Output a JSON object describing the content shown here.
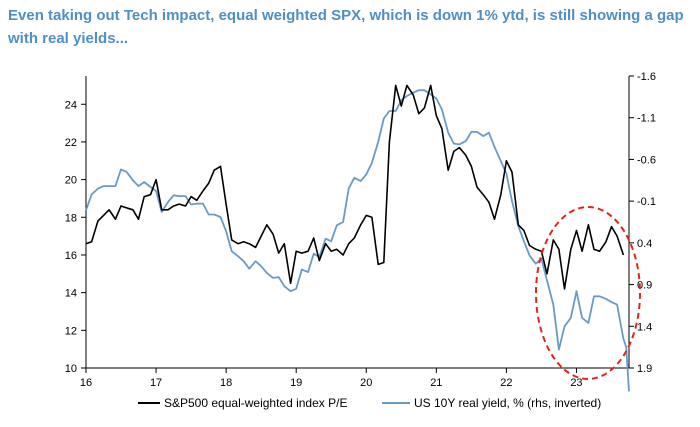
{
  "title": "Even taking out Tech impact, equal weighted SPX, which is down 1% ytd, is still showing a gap with real yields...",
  "chart_data": {
    "type": "line",
    "x_range": [
      16,
      23.75
    ],
    "x_ticks": [
      "16",
      "17",
      "18",
      "19",
      "20",
      "21",
      "22",
      "23"
    ],
    "y_left": {
      "ylim": [
        10,
        25.5
      ],
      "ticks": [
        "10",
        "12",
        "14",
        "16",
        "18",
        "20",
        "22",
        "24"
      ]
    },
    "y_right": {
      "ylim": [
        -1.6,
        1.9
      ],
      "inverted": true,
      "ticks": [
        "-1.6",
        "-1.1",
        "-0.6",
        "-0.1",
        "0.4",
        "0.9",
        "1.4",
        "1.9"
      ]
    },
    "series": [
      {
        "name": "S&P500 equal-weighted index P/E",
        "axis": "left",
        "color": "#000000",
        "x": [
          16.0,
          16.08,
          16.17,
          16.25,
          16.33,
          16.42,
          16.5,
          16.58,
          16.67,
          16.75,
          16.83,
          16.92,
          17.0,
          17.08,
          17.17,
          17.25,
          17.33,
          17.42,
          17.5,
          17.58,
          17.67,
          17.75,
          17.83,
          17.92,
          18.0,
          18.08,
          18.17,
          18.25,
          18.33,
          18.42,
          18.5,
          18.58,
          18.67,
          18.75,
          18.83,
          18.92,
          19.0,
          19.08,
          19.17,
          19.25,
          19.33,
          19.42,
          19.5,
          19.58,
          19.67,
          19.75,
          19.83,
          19.92,
          20.0,
          20.08,
          20.17,
          20.25,
          20.33,
          20.42,
          20.5,
          20.58,
          20.67,
          20.75,
          20.83,
          20.92,
          21.0,
          21.08,
          21.17,
          21.25,
          21.33,
          21.42,
          21.5,
          21.58,
          21.67,
          21.75,
          21.83,
          21.92,
          22.0,
          22.08,
          22.17,
          22.25,
          22.33,
          22.42,
          22.5,
          22.58,
          22.67,
          22.75,
          22.83,
          22.92,
          23.0,
          23.08,
          23.17,
          23.25,
          23.33,
          23.42,
          23.5,
          23.58,
          23.67
        ],
        "values": [
          16.6,
          16.7,
          17.8,
          18.1,
          18.4,
          17.9,
          18.6,
          18.5,
          18.4,
          17.9,
          19.1,
          19.2,
          20.0,
          18.4,
          18.4,
          18.6,
          18.7,
          18.6,
          19.1,
          18.9,
          19.4,
          19.8,
          20.5,
          20.7,
          18.7,
          16.8,
          16.6,
          16.7,
          16.6,
          16.4,
          17.0,
          17.6,
          17.1,
          16.1,
          16.6,
          14.5,
          16.2,
          16.1,
          16.2,
          16.9,
          15.7,
          16.6,
          16.2,
          16.3,
          16.0,
          16.6,
          16.9,
          17.6,
          18.1,
          18.0,
          15.5,
          15.6,
          22.0,
          25.0,
          23.9,
          25.0,
          24.5,
          23.5,
          23.8,
          25.0,
          23.4,
          22.7,
          20.5,
          21.5,
          21.7,
          21.3,
          20.7,
          19.6,
          19.2,
          18.8,
          17.9,
          19.2,
          21.0,
          20.4,
          17.6,
          17.3,
          16.5,
          16.3,
          16.2,
          15.0,
          16.8,
          16.3,
          14.2,
          16.3,
          17.3,
          16.2,
          17.6,
          16.3,
          16.2,
          16.7,
          17.5,
          17.0,
          16.0
        ]
      },
      {
        "name": "US 10Y real yield, % (rhs, inverted)",
        "axis": "right",
        "color": "#6a9ac4",
        "x": [
          16.0,
          16.08,
          16.17,
          16.25,
          16.33,
          16.42,
          16.5,
          16.58,
          16.67,
          16.75,
          16.83,
          16.92,
          17.0,
          17.08,
          17.17,
          17.25,
          17.33,
          17.42,
          17.5,
          17.58,
          17.67,
          17.75,
          17.83,
          17.92,
          18.0,
          18.08,
          18.17,
          18.25,
          18.33,
          18.42,
          18.5,
          18.58,
          18.67,
          18.75,
          18.83,
          18.92,
          19.0,
          19.08,
          19.17,
          19.25,
          19.33,
          19.42,
          19.5,
          19.58,
          19.67,
          19.75,
          19.83,
          19.92,
          20.0,
          20.08,
          20.17,
          20.25,
          20.33,
          20.42,
          20.5,
          20.58,
          20.67,
          20.75,
          20.83,
          20.92,
          21.0,
          21.08,
          21.17,
          21.25,
          21.33,
          21.42,
          21.5,
          21.58,
          21.67,
          21.75,
          21.83,
          21.92,
          22.0,
          22.08,
          22.17,
          22.25,
          22.33,
          22.42,
          22.5,
          22.58,
          22.67,
          22.75,
          22.83,
          22.92,
          23.0,
          23.08,
          23.17,
          23.25,
          23.33,
          23.42,
          23.5,
          23.58,
          23.67,
          23.71,
          23.75
        ],
        "values": [
          0.01,
          -0.18,
          -0.25,
          -0.28,
          -0.28,
          -0.28,
          -0.48,
          -0.45,
          -0.35,
          -0.28,
          -0.33,
          -0.27,
          -0.22,
          0.03,
          -0.09,
          -0.17,
          -0.16,
          -0.16,
          -0.06,
          -0.07,
          -0.07,
          0.06,
          0.06,
          0.09,
          0.26,
          0.5,
          0.56,
          0.62,
          0.71,
          0.62,
          0.68,
          0.76,
          0.82,
          0.81,
          0.92,
          0.98,
          0.95,
          0.72,
          0.75,
          0.53,
          0.57,
          0.35,
          0.38,
          0.19,
          0.15,
          -0.25,
          -0.38,
          -0.34,
          -0.42,
          -0.56,
          -0.81,
          -1.09,
          -1.18,
          -1.18,
          -1.31,
          -1.36,
          -1.4,
          -1.43,
          -1.43,
          -1.38,
          -1.33,
          -1.2,
          -0.92,
          -0.79,
          -0.78,
          -0.82,
          -0.93,
          -0.93,
          -0.88,
          -0.92,
          -0.75,
          -0.58,
          -0.43,
          -0.1,
          0.2,
          0.38,
          0.55,
          0.65,
          0.59,
          0.85,
          1.14,
          1.68,
          1.4,
          1.3,
          0.98,
          1.3,
          1.36,
          1.04,
          1.04,
          1.07,
          1.11,
          1.14,
          1.55,
          1.65,
          2.18
        ]
      }
    ],
    "annotation": "dashed-red-ellipse"
  }
}
